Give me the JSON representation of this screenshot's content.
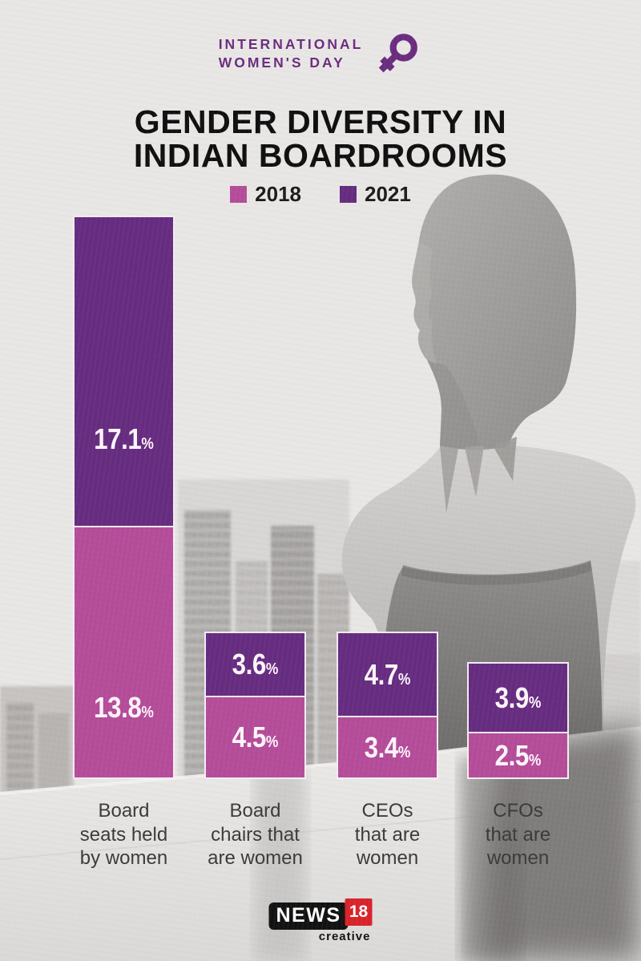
{
  "header": {
    "brand_line1": "INTERNATIONAL",
    "brand_line2": "WOMEN'S DAY",
    "brand_color": "#6b2c80",
    "title_line1": "GENDER DIVERSITY IN",
    "title_line2": "INDIAN BOARDROOMS",
    "female_symbol_icon": "female-venus-symbol"
  },
  "chart_data": {
    "type": "bar",
    "stacked": true,
    "legend_position": "top",
    "value_suffix": "%",
    "label_color": "#fdf5fa",
    "categories": [
      [
        "Board",
        "seats held",
        "by women"
      ],
      [
        "Board",
        "chairs that",
        "are women"
      ],
      [
        "CEOs",
        "that are",
        "women"
      ],
      [
        "CFOs",
        "that are",
        "women"
      ]
    ],
    "series": [
      {
        "name": "2018",
        "color": "#b54c99",
        "values": [
          13.8,
          4.5,
          3.4,
          2.5
        ]
      },
      {
        "name": "2021",
        "color": "#662c80",
        "values": [
          17.1,
          3.6,
          4.7,
          3.9
        ]
      }
    ],
    "stack_top_series": "2021",
    "ylim": [
      0,
      31
    ]
  },
  "footer": {
    "logo_main": "NEWS",
    "logo_num": "18",
    "logo_sub": "creative",
    "logo_red": "#d9232a",
    "logo_black": "#121212"
  }
}
